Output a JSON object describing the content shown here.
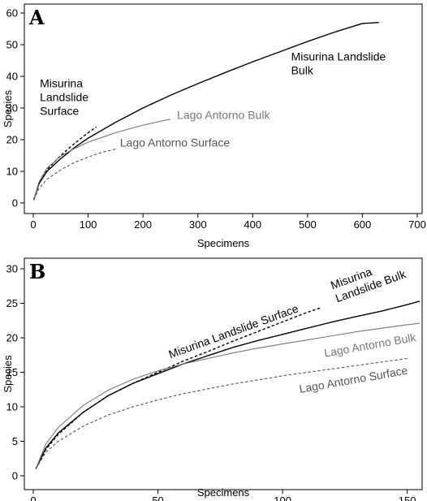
{
  "chart_data": [
    {
      "type": "line",
      "panel_label": "A",
      "xlabel": "Specimens",
      "ylabel": "Species",
      "xlim": [
        0,
        700
      ],
      "ylim": [
        0,
        60
      ],
      "xticks": [
        0,
        100,
        200,
        300,
        400,
        500,
        600,
        700
      ],
      "yticks": [
        0,
        10,
        20,
        30,
        40,
        50,
        60
      ],
      "grid": false,
      "series": [
        {
          "name": "Misurina Landslide Bulk",
          "style": "solid",
          "color": "#000000",
          "x": [
            1,
            10,
            25,
            50,
            75,
            100,
            150,
            200,
            250,
            300,
            350,
            400,
            450,
            500,
            550,
            600,
            630
          ],
          "y": [
            1,
            6,
            10,
            14,
            17.5,
            20.5,
            25.5,
            30,
            34,
            37.7,
            41.2,
            44.6,
            47.8,
            51,
            54,
            56.7,
            57
          ]
        },
        {
          "name": "Misurina Landslide Surface",
          "style": "dashed",
          "color": "#000000",
          "x": [
            1,
            10,
            25,
            50,
            75,
            100,
            115
          ],
          "y": [
            1,
            6,
            10.5,
            15,
            18.8,
            22.2,
            24
          ]
        },
        {
          "name": "Lago Antorno Bulk",
          "style": "solid",
          "color": "#777777",
          "x": [
            1,
            10,
            25,
            50,
            75,
            100,
            150,
            200,
            250
          ],
          "y": [
            1,
            6.5,
            11,
            14.8,
            17.2,
            19.2,
            22.2,
            24.6,
            26.5
          ]
        },
        {
          "name": "Lago Antorno Surface",
          "style": "dashed",
          "color": "#555555",
          "x": [
            1,
            10,
            25,
            50,
            75,
            100,
            125,
            150
          ],
          "y": [
            1,
            4.5,
            7.5,
            10.5,
            12.8,
            14.5,
            16,
            17
          ]
        }
      ],
      "annotations": [
        {
          "lines": [
            "Misurina Landslide",
            "Bulk"
          ],
          "x": 470,
          "y": 45,
          "color": "#000000"
        },
        {
          "lines": [
            "Misurina",
            "Landslide",
            "Surface"
          ],
          "x": 12,
          "y": 36.5,
          "color": "#000000"
        },
        {
          "lines": [
            "Lago Antorno Bulk"
          ],
          "x": 262,
          "y": 26.5,
          "color": "#777777"
        },
        {
          "lines": [
            "Lago Antorno Surface"
          ],
          "x": 158,
          "y": 17.8,
          "color": "#555555"
        }
      ]
    },
    {
      "type": "line",
      "panel_label": "B",
      "xlabel": "Specimens",
      "ylabel": "Species",
      "xlim": [
        0,
        155
      ],
      "ylim": [
        0,
        30
      ],
      "xticks": [
        0,
        50,
        100,
        150
      ],
      "yticks": [
        0,
        5,
        10,
        15,
        20,
        25,
        30
      ],
      "grid": false,
      "series": [
        {
          "name": "Misurina Landslide Bulk",
          "style": "solid",
          "color": "#000000",
          "x": [
            1,
            5,
            10,
            20,
            30,
            40,
            50,
            60,
            70,
            80,
            90,
            100,
            110,
            120,
            130,
            140,
            150,
            155
          ],
          "y": [
            1,
            4,
            6.2,
            9.2,
            11.6,
            13.4,
            14.8,
            16.2,
            17.4,
            18.6,
            19.6,
            20.5,
            21.4,
            22.3,
            23.1,
            23.9,
            24.8,
            25.3
          ]
        },
        {
          "name": "Misurina Landslide Surface",
          "style": "dashed",
          "color": "#000000",
          "x": [
            1,
            5,
            10,
            20,
            30,
            40,
            50,
            60,
            70,
            80,
            90,
            100,
            110,
            115
          ],
          "y": [
            1,
            3.8,
            6,
            9.2,
            11.6,
            13.4,
            15,
            16.6,
            18,
            19.5,
            20.9,
            22.3,
            23.7,
            24.3
          ]
        },
        {
          "name": "Lago Antorno Bulk",
          "style": "solid",
          "color": "#777777",
          "x": [
            1,
            5,
            10,
            20,
            30,
            40,
            50,
            60,
            70,
            80,
            90,
            100,
            110,
            120,
            130,
            140,
            150,
            155
          ],
          "y": [
            1,
            4.6,
            7,
            10.2,
            12.4,
            14,
            15.2,
            16.2,
            17,
            17.8,
            18.5,
            19.1,
            19.7,
            20.3,
            20.9,
            21.4,
            21.9,
            22.1
          ]
        },
        {
          "name": "Lago Antorno Surface",
          "style": "dashed",
          "color": "#555555",
          "x": [
            1,
            5,
            10,
            20,
            30,
            40,
            50,
            60,
            70,
            80,
            90,
            100,
            110,
            120,
            130,
            140,
            150
          ],
          "y": [
            1,
            3.4,
            5,
            7.2,
            8.8,
            10,
            11,
            11.9,
            12.6,
            13.3,
            13.9,
            14.5,
            15,
            15.5,
            16,
            16.5,
            17
          ]
        }
      ],
      "annotations": [
        {
          "lines": [
            "Misurina Landslide Surface"
          ],
          "x": 55,
          "y": 17,
          "rotate": -20,
          "color": "#000000"
        },
        {
          "lines": [
            "Misurina",
            "Landslide Bulk"
          ],
          "x": 120,
          "y": 27,
          "rotate": -20,
          "color": "#000000"
        },
        {
          "lines": [
            "Lago Antorno Bulk"
          ],
          "x": 117,
          "y": 17.2,
          "rotate": -10,
          "color": "#777777"
        },
        {
          "lines": [
            "Lago Antorno Surface"
          ],
          "x": 107,
          "y": 12,
          "rotate": -10,
          "color": "#555555"
        }
      ]
    }
  ]
}
